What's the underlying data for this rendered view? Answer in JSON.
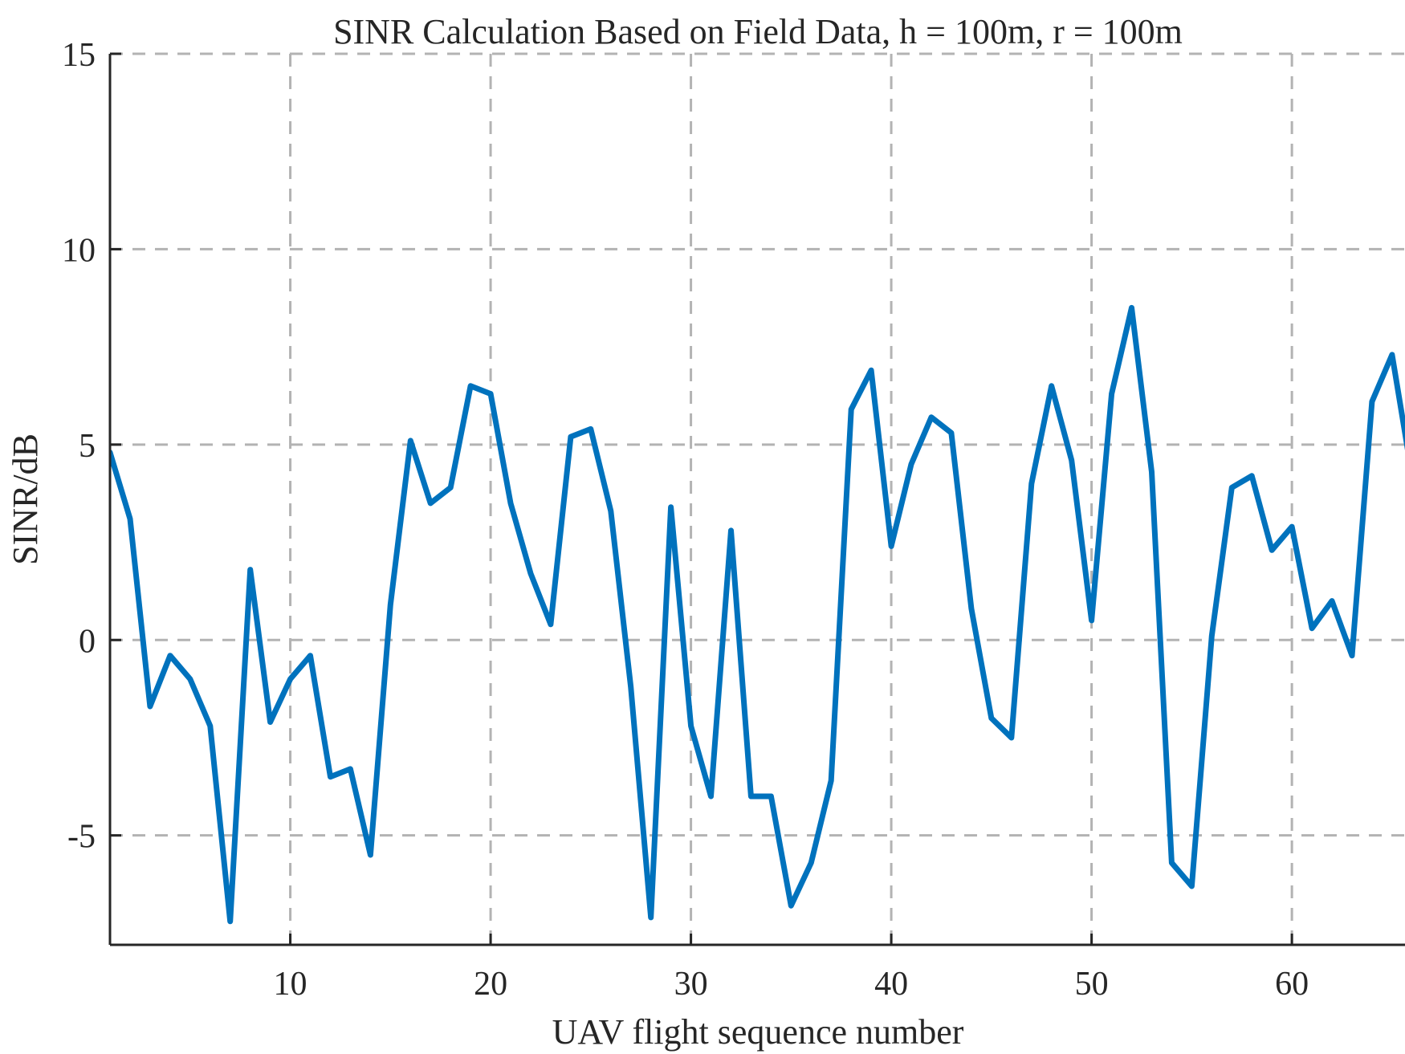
{
  "chart_data": {
    "type": "line",
    "title": "SINR Calculation Based on Field Data, h = 100m, r = 100m",
    "xlabel": "UAV flight sequence number",
    "ylabel": "SINR/dB",
    "xlim": [
      1,
      65
    ],
    "ylim": [
      -7.8,
      15
    ],
    "xticks": [
      10,
      20,
      30,
      40,
      50,
      60
    ],
    "yticks": [
      -5,
      0,
      5,
      10,
      15
    ],
    "xtick_labels": [
      "10",
      "20",
      "30",
      "40",
      "50",
      "60"
    ],
    "ytick_labels": [
      "-5",
      "0",
      "5",
      "10",
      "15"
    ],
    "grid": true,
    "series": [
      {
        "color": "#0072BD",
        "x": [
          1,
          2,
          3,
          4,
          5,
          6,
          7,
          8,
          9,
          10,
          11,
          12,
          13,
          14,
          15,
          16,
          17,
          18,
          19,
          20,
          21,
          22,
          23,
          24,
          25,
          26,
          27,
          28,
          29,
          30,
          31,
          32,
          33,
          34,
          35,
          36,
          37,
          38,
          39,
          40,
          41,
          42,
          43,
          44,
          45,
          46,
          47,
          48,
          49,
          50,
          51,
          52,
          53,
          54,
          55,
          56,
          57,
          58,
          59,
          60,
          61,
          62,
          63,
          64,
          65,
          66
        ],
        "y": [
          4.8,
          3.1,
          -1.7,
          -0.4,
          -1.0,
          -2.2,
          -7.2,
          1.8,
          -2.1,
          -1.0,
          -0.4,
          -3.5,
          -3.3,
          -5.5,
          0.9,
          5.1,
          3.5,
          3.9,
          6.5,
          6.3,
          3.5,
          1.7,
          0.4,
          5.2,
          5.4,
          3.3,
          -1.2,
          -7.1,
          3.4,
          -2.2,
          -4.0,
          2.8,
          -4.0,
          -4.0,
          -6.8,
          -5.7,
          -3.6,
          5.9,
          6.9,
          2.4,
          4.5,
          5.7,
          5.3,
          0.8,
          -2.0,
          -2.5,
          4.0,
          6.5,
          4.6,
          0.5,
          6.3,
          8.5,
          4.3,
          -5.7,
          -6.3,
          0.1,
          3.9,
          4.2,
          2.3,
          2.9,
          0.3,
          1.0,
          -0.4,
          6.1,
          7.3,
          4.2
        ]
      }
    ]
  }
}
